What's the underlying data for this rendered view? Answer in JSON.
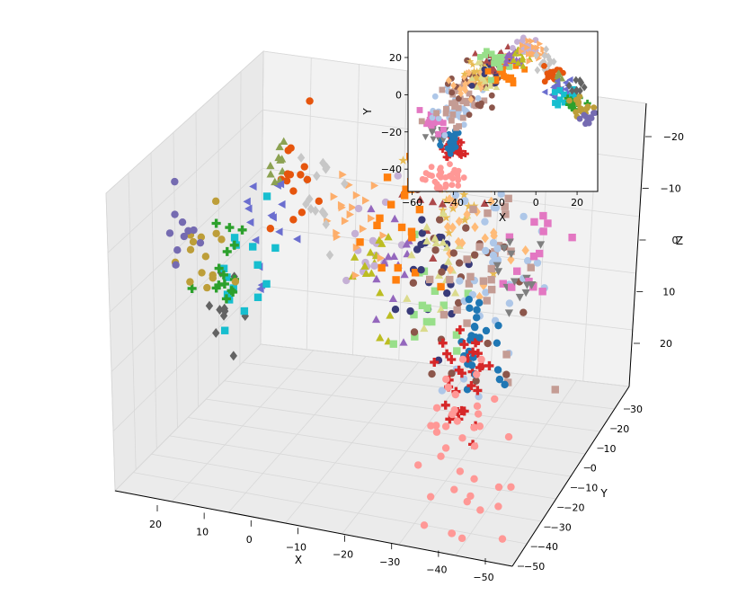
{
  "chart_data": [
    {
      "type": "scatter",
      "projection": "3d",
      "xlabel": "X",
      "ylabel": "Y",
      "zlabel": "Z",
      "xlim": [
        -57,
        28
      ],
      "ylim": [
        -52,
        35
      ],
      "zlim": [
        -27,
        29
      ],
      "z_inverted": true,
      "grid": true,
      "x_ticks": [
        "20",
        "10",
        "0",
        "−10",
        "−20",
        "−30",
        "−40",
        "−50"
      ],
      "y_ticks": [
        "30",
        "20",
        "10",
        "0",
        "−10",
        "−20",
        "−30",
        "−40",
        "−50"
      ],
      "z_ticks": [
        "−20",
        "−10",
        "0",
        "10",
        "20"
      ],
      "clusters": [
        {
          "x": -45,
          "y": -45,
          "z": 10,
          "n": 40,
          "spread": 5,
          "color": "#ff9896",
          "marker": "circle"
        },
        {
          "x": -40,
          "y": -30,
          "z": 5,
          "n": 30,
          "spread": 3,
          "color": "#d62728",
          "marker": "plus"
        },
        {
          "x": -42,
          "y": -25,
          "z": 3,
          "n": 25,
          "spread": 3,
          "color": "#1f77b4",
          "marker": "circle"
        },
        {
          "x": -47,
          "y": -20,
          "z": -3,
          "n": 15,
          "spread": 3,
          "color": "#7f7f7f",
          "marker": "triangle-down"
        },
        {
          "x": -50,
          "y": -15,
          "z": -5,
          "n": 15,
          "spread": 3,
          "color": "#e377c2",
          "marker": "square"
        },
        {
          "x": -38,
          "y": -8,
          "z": -3,
          "n": 35,
          "spread": 6,
          "color": "#aec7e8",
          "marker": "circle"
        },
        {
          "x": -35,
          "y": -5,
          "z": 0,
          "n": 30,
          "spread": 6,
          "color": "#c49c94",
          "marker": "square"
        },
        {
          "x": -30,
          "y": 5,
          "z": 0,
          "n": 30,
          "spread": 6,
          "color": "#8c564b",
          "marker": "circle"
        },
        {
          "x": -32,
          "y": 8,
          "z": -2,
          "n": 25,
          "spread": 5,
          "color": "#ffbb78",
          "marker": "diamond"
        },
        {
          "x": -28,
          "y": 12,
          "z": -5,
          "n": 20,
          "spread": 4,
          "color": "#e7ba52",
          "marker": "star"
        },
        {
          "x": -25,
          "y": 10,
          "z": 3,
          "n": 20,
          "spread": 4,
          "color": "#dbdb8d",
          "marker": "triangle-up"
        },
        {
          "x": -22,
          "y": 15,
          "z": 5,
          "n": 20,
          "spread": 4,
          "color": "#393b79",
          "marker": "circle"
        },
        {
          "x": -18,
          "y": 18,
          "z": -3,
          "n": 15,
          "spread": 4,
          "color": "#ad494a",
          "marker": "triangle-up"
        },
        {
          "x": -15,
          "y": 15,
          "z": 0,
          "n": 20,
          "spread": 4,
          "color": "#ff7f0e",
          "marker": "square"
        },
        {
          "x": -20,
          "y": 20,
          "z": 10,
          "n": 15,
          "spread": 3,
          "color": "#98df8a",
          "marker": "square"
        },
        {
          "x": -12,
          "y": 20,
          "z": 5,
          "n": 15,
          "spread": 3,
          "color": "#9467bd",
          "marker": "triangle-up"
        },
        {
          "x": -8,
          "y": 22,
          "z": 8,
          "n": 15,
          "spread": 3,
          "color": "#bcbd22",
          "marker": "triangle-up"
        },
        {
          "x": -5,
          "y": 25,
          "z": 5,
          "n": 15,
          "spread": 3,
          "color": "#c5b0d5",
          "marker": "circle"
        },
        {
          "x": 0,
          "y": 22,
          "z": 2,
          "n": 20,
          "spread": 4,
          "color": "#fdae6b",
          "marker": "triangle-right"
        },
        {
          "x": 5,
          "y": 18,
          "z": 0,
          "n": 15,
          "spread": 3,
          "color": "#c7c7c7",
          "marker": "diamond"
        },
        {
          "x": 8,
          "y": 12,
          "z": -3,
          "n": 15,
          "spread": 3,
          "color": "#e6550d",
          "marker": "circle"
        },
        {
          "x": 10,
          "y": 8,
          "z": -5,
          "n": 10,
          "spread": 2,
          "color": "#8ca252",
          "marker": "triangle-up"
        },
        {
          "x": 12,
          "y": 5,
          "z": 0,
          "n": 15,
          "spread": 3,
          "color": "#6b6ecf",
          "marker": "triangle-left"
        },
        {
          "x": 15,
          "y": 0,
          "z": 5,
          "n": 15,
          "spread": 3,
          "color": "#17becf",
          "marker": "square"
        },
        {
          "x": 18,
          "y": -5,
          "z": 3,
          "n": 15,
          "spread": 3,
          "color": "#2ca02c",
          "marker": "plus"
        },
        {
          "x": 22,
          "y": -8,
          "z": 0,
          "n": 15,
          "spread": 3,
          "color": "#bd9e39",
          "marker": "circle"
        },
        {
          "x": 25,
          "y": -12,
          "z": -2,
          "n": 10,
          "spread": 2,
          "color": "#756bb1",
          "marker": "circle"
        },
        {
          "x": 20,
          "y": 5,
          "z": 10,
          "n": 10,
          "spread": 2,
          "color": "#636363",
          "marker": "diamond"
        }
      ]
    },
    {
      "type": "scatter",
      "inset": true,
      "xlabel": "X",
      "ylabel": "Y",
      "xlim": [
        -62,
        30
      ],
      "ylim": [
        -52,
        34
      ],
      "x_ticks": [
        "−60",
        "−40",
        "−20",
        "0",
        "20"
      ],
      "y_ticks": [
        "20",
        "0",
        "−20",
        "−40"
      ],
      "x_tick_values": [
        -60,
        -40,
        -20,
        0,
        20
      ],
      "y_tick_values": [
        20,
        0,
        -20,
        -40
      ],
      "points_source": "same clusters projected onto X–Y"
    }
  ]
}
